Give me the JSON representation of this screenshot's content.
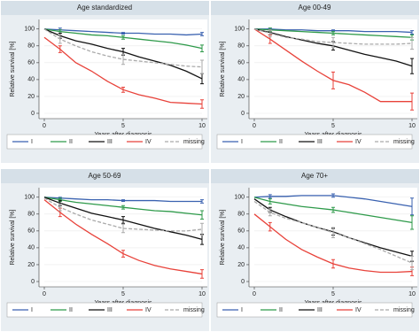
{
  "chart_data": [
    {
      "type": "line",
      "title": "Age standardized",
      "ylabel": "Relative survival [%]",
      "xlabel": "Years after diagnosis",
      "x": [
        0,
        1,
        2,
        3,
        4,
        5,
        6,
        7,
        8,
        9,
        10
      ],
      "xlim": [
        0,
        10
      ],
      "xticks": [
        0,
        5,
        10
      ],
      "ylim": [
        0,
        105
      ],
      "yticks": [
        0,
        20,
        40,
        60,
        80,
        100
      ],
      "grid": true,
      "series": [
        {
          "name": "I",
          "color": "#3a62b0",
          "dash": false,
          "values": [
            100,
            99,
            98,
            97,
            96,
            95,
            95,
            94,
            94,
            93,
            94
          ],
          "errors": [
            null,
            2,
            null,
            null,
            null,
            1,
            null,
            null,
            null,
            null,
            2
          ]
        },
        {
          "name": "II",
          "color": "#2e9a4a",
          "dash": false,
          "values": [
            100,
            97,
            95,
            93,
            92,
            90,
            88,
            86,
            84,
            81,
            77
          ],
          "errors": [
            null,
            2,
            null,
            null,
            null,
            2,
            null,
            null,
            null,
            null,
            4
          ]
        },
        {
          "name": "III",
          "color": "#111111",
          "dash": false,
          "values": [
            100,
            92,
            86,
            82,
            77,
            73,
            67,
            62,
            57,
            50,
            41
          ],
          "errors": [
            null,
            3,
            null,
            null,
            null,
            4,
            null,
            null,
            null,
            null,
            6
          ]
        },
        {
          "name": "IV",
          "color": "#e8423a",
          "dash": false,
          "values": [
            90,
            76,
            60,
            50,
            38,
            28,
            22,
            18,
            13,
            12,
            11
          ],
          "errors": [
            null,
            4,
            null,
            null,
            null,
            3,
            null,
            null,
            null,
            null,
            5
          ]
        },
        {
          "name": "missing",
          "color": "#aaaaaa",
          "dash": true,
          "values": [
            100,
            88,
            80,
            73,
            68,
            64,
            62,
            60,
            58,
            56,
            55
          ],
          "errors": [
            null,
            5,
            null,
            null,
            null,
            6,
            null,
            null,
            null,
            null,
            8
          ]
        }
      ]
    },
    {
      "type": "line",
      "title": "Age 00-49",
      "ylabel": "Relative survival [%]",
      "xlabel": "Years after diagnosis",
      "x": [
        0,
        1,
        2,
        3,
        4,
        5,
        6,
        7,
        8,
        9,
        10
      ],
      "xlim": [
        0,
        10
      ],
      "xticks": [
        0,
        5,
        10
      ],
      "ylim": [
        0,
        105
      ],
      "yticks": [
        0,
        20,
        40,
        60,
        80,
        100
      ],
      "grid": true,
      "series": [
        {
          "name": "I",
          "color": "#3a62b0",
          "dash": false,
          "values": [
            100,
            100,
            99,
            99,
            98,
            98,
            98,
            97,
            97,
            97,
            96
          ],
          "errors": [
            null,
            1,
            null,
            null,
            null,
            1,
            null,
            null,
            null,
            null,
            2
          ]
        },
        {
          "name": "II",
          "color": "#2e9a4a",
          "dash": false,
          "values": [
            100,
            99,
            98,
            97,
            96,
            95,
            94,
            93,
            92,
            91,
            90
          ],
          "errors": [
            null,
            2,
            null,
            null,
            null,
            2,
            null,
            null,
            null,
            null,
            3
          ]
        },
        {
          "name": "III",
          "color": "#111111",
          "dash": false,
          "values": [
            100,
            96,
            91,
            87,
            83,
            80,
            75,
            70,
            66,
            62,
            56
          ],
          "errors": [
            null,
            3,
            null,
            null,
            null,
            5,
            null,
            null,
            null,
            null,
            9
          ]
        },
        {
          "name": "IV",
          "color": "#e8423a",
          "dash": false,
          "values": [
            100,
            88,
            75,
            62,
            50,
            39,
            34,
            25,
            14,
            14,
            14
          ],
          "errors": [
            null,
            5,
            null,
            null,
            null,
            10,
            null,
            null,
            null,
            null,
            10
          ]
        },
        {
          "name": "missing",
          "color": "#aaaaaa",
          "dash": true,
          "values": [
            100,
            95,
            90,
            88,
            85,
            84,
            83,
            82,
            82,
            82,
            83
          ],
          "errors": [
            null,
            4,
            null,
            null,
            null,
            6,
            null,
            null,
            null,
            null,
            7
          ]
        }
      ]
    },
    {
      "type": "line",
      "title": "Age 50-69",
      "ylabel": "Relative survival [%]",
      "xlabel": "Years after diagnosis",
      "x": [
        0,
        1,
        2,
        3,
        4,
        5,
        6,
        7,
        8,
        9,
        10
      ],
      "xlim": [
        0,
        10
      ],
      "xticks": [
        0,
        5,
        10
      ],
      "ylim": [
        0,
        105
      ],
      "yticks": [
        0,
        20,
        40,
        60,
        80,
        100
      ],
      "grid": true,
      "series": [
        {
          "name": "I",
          "color": "#3a62b0",
          "dash": false,
          "values": [
            100,
            99,
            98,
            97,
            97,
            96,
            96,
            96,
            95,
            95,
            95
          ],
          "errors": [
            null,
            1,
            null,
            null,
            null,
            1,
            null,
            null,
            null,
            null,
            2
          ]
        },
        {
          "name": "II",
          "color": "#2e9a4a",
          "dash": false,
          "values": [
            100,
            97,
            94,
            92,
            90,
            88,
            86,
            84,
            83,
            81,
            79
          ],
          "errors": [
            null,
            2,
            null,
            null,
            null,
            2,
            null,
            null,
            null,
            null,
            5
          ]
        },
        {
          "name": "III",
          "color": "#111111",
          "dash": false,
          "values": [
            100,
            93,
            87,
            81,
            77,
            73,
            68,
            63,
            59,
            55,
            50
          ],
          "errors": [
            null,
            3,
            null,
            null,
            null,
            4,
            null,
            null,
            null,
            null,
            6
          ]
        },
        {
          "name": "IV",
          "color": "#e8423a",
          "dash": false,
          "values": [
            97,
            82,
            68,
            56,
            45,
            33,
            25,
            19,
            15,
            12,
            9
          ],
          "errors": [
            null,
            5,
            null,
            null,
            null,
            4,
            null,
            null,
            null,
            null,
            5
          ]
        },
        {
          "name": "missing",
          "color": "#aaaaaa",
          "dash": true,
          "values": [
            99,
            88,
            80,
            73,
            68,
            63,
            62,
            61,
            60,
            60,
            62
          ],
          "errors": [
            null,
            4,
            null,
            null,
            null,
            5,
            null,
            null,
            null,
            null,
            7
          ]
        }
      ]
    },
    {
      "type": "line",
      "title": "Age 70+",
      "ylabel": "Relative survival [%]",
      "xlabel": "Years after diagnosis",
      "x": [
        0,
        1,
        2,
        3,
        4,
        5,
        6,
        7,
        8,
        9,
        10
      ],
      "xlim": [
        0,
        10
      ],
      "xticks": [
        0,
        5,
        10
      ],
      "ylim": [
        0,
        105
      ],
      "yticks": [
        0,
        20,
        40,
        60,
        80,
        100
      ],
      "grid": true,
      "series": [
        {
          "name": "I",
          "color": "#3a62b0",
          "dash": false,
          "values": [
            100,
            101,
            101,
            102,
            102,
            102,
            100,
            98,
            95,
            92,
            89
          ],
          "errors": [
            null,
            2,
            null,
            null,
            null,
            2,
            null,
            null,
            null,
            null,
            10
          ]
        },
        {
          "name": "II",
          "color": "#2e9a4a",
          "dash": false,
          "values": [
            100,
            95,
            92,
            89,
            87,
            85,
            82,
            79,
            76,
            73,
            70
          ],
          "errors": [
            null,
            3,
            null,
            null,
            null,
            3,
            null,
            null,
            null,
            null,
            8
          ]
        },
        {
          "name": "III",
          "color": "#111111",
          "dash": false,
          "values": [
            98,
            85,
            77,
            70,
            64,
            59,
            52,
            46,
            40,
            35,
            30
          ],
          "errors": [
            null,
            3,
            null,
            null,
            null,
            4,
            null,
            null,
            null,
            null,
            6
          ]
        },
        {
          "name": "IV",
          "color": "#e8423a",
          "dash": false,
          "values": [
            80,
            65,
            50,
            38,
            29,
            21,
            16,
            13,
            11,
            11,
            12
          ],
          "errors": [
            null,
            5,
            null,
            null,
            null,
            5,
            null,
            null,
            null,
            null,
            5
          ]
        },
        {
          "name": "missing",
          "color": "#aaaaaa",
          "dash": true,
          "values": [
            95,
            82,
            75,
            70,
            64,
            58,
            52,
            45,
            38,
            30,
            22
          ],
          "errors": [
            null,
            4,
            null,
            null,
            null,
            6,
            null,
            null,
            null,
            null,
            8
          ]
        }
      ]
    }
  ]
}
